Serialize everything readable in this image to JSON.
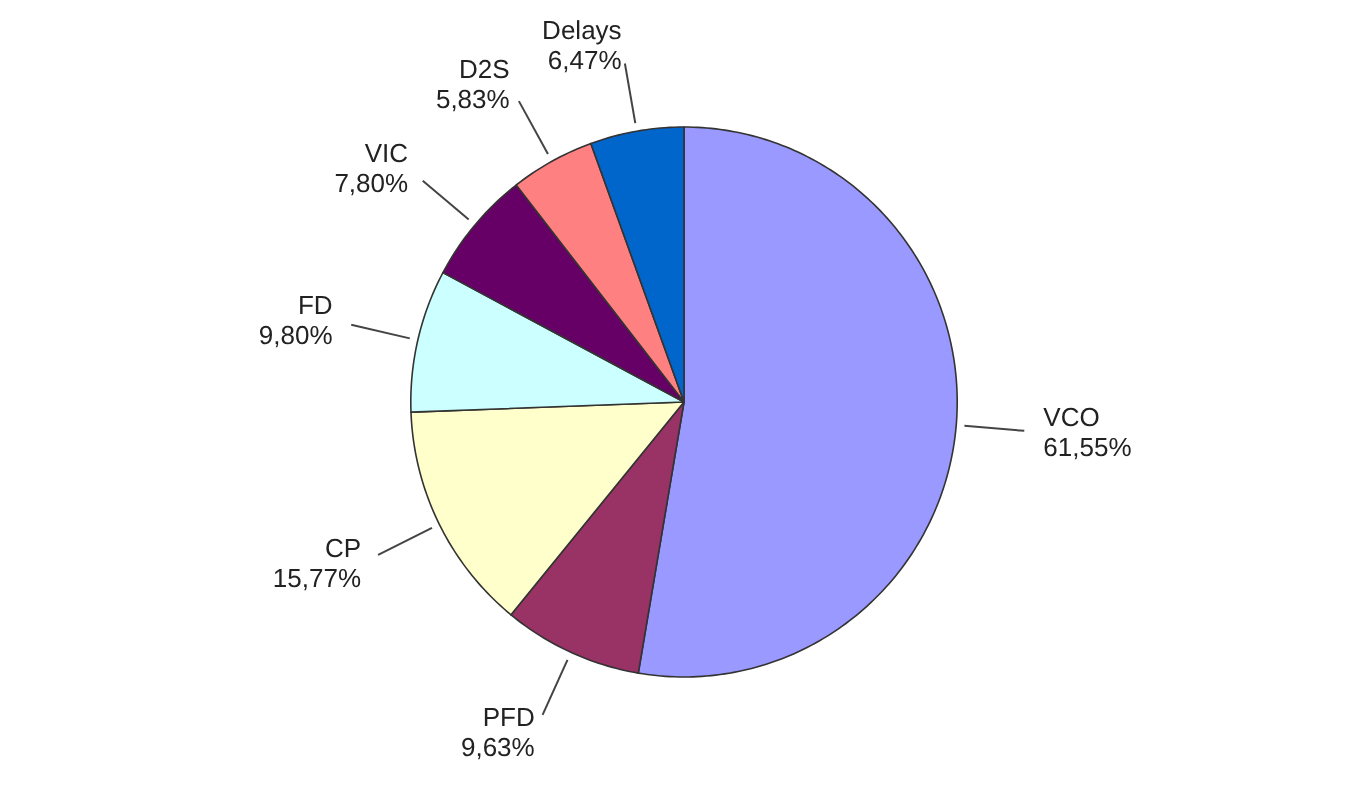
{
  "chart_data": {
    "type": "pie",
    "categories": [
      "VCO",
      "PFD",
      "CP",
      "FD",
      "VIC",
      "D2S",
      "Delays"
    ],
    "values": [
      61.55,
      9.63,
      15.77,
      9.8,
      7.8,
      5.83,
      6.47
    ],
    "value_labels": [
      "61,55%",
      "9,63%",
      "15,77%",
      "9,80%",
      "7,80%",
      "5,83%",
      "6,47%"
    ],
    "colors": [
      "#9999ff",
      "#993366",
      "#ffffcc",
      "#ccffff",
      "#660066",
      "#ff8080",
      "#0066cc"
    ]
  }
}
